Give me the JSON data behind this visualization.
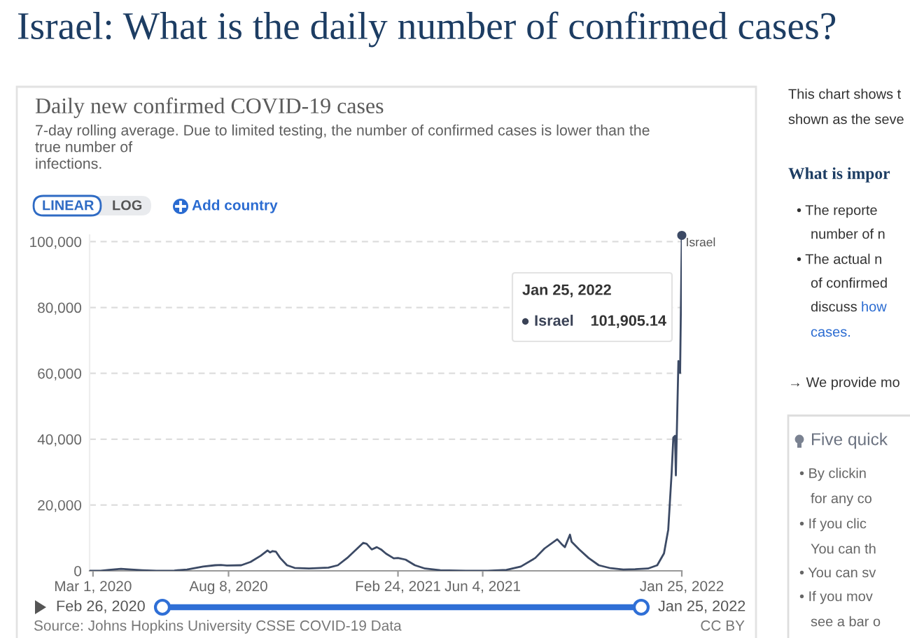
{
  "chart_data": {
    "type": "line",
    "title": "Daily new confirmed COVID-19 cases",
    "subtitle": "7-day rolling average. Due to limited testing, the number of confirmed cases is lower than the\ntrue number of\ninfections.",
    "x": [
      "2020-02-26",
      "2020-03-10",
      "2020-03-20",
      "2020-04-03",
      "2020-04-15",
      "2020-04-28",
      "2020-05-15",
      "2020-06-05",
      "2020-06-20",
      "2020-07-09",
      "2020-07-23",
      "2020-07-30",
      "2020-08-06",
      "2020-08-23",
      "2020-09-03",
      "2020-09-15",
      "2020-09-23",
      "2020-09-26",
      "2020-09-29",
      "2020-10-03",
      "2020-10-08",
      "2020-10-16",
      "2020-10-25",
      "2020-11-11",
      "2020-12-04",
      "2020-12-15",
      "2020-12-26",
      "2021-01-07",
      "2021-01-14",
      "2021-01-18",
      "2021-01-24",
      "2021-01-30",
      "2021-02-04",
      "2021-02-10",
      "2021-02-19",
      "2021-02-24",
      "2021-03-05",
      "2021-03-16",
      "2021-03-28",
      "2021-04-15",
      "2021-05-15",
      "2021-06-10",
      "2021-07-02",
      "2021-07-19",
      "2021-08-05",
      "2021-08-16",
      "2021-08-31",
      "2021-09-06",
      "2021-09-09",
      "2021-09-15",
      "2021-09-17",
      "2021-09-26",
      "2021-10-07",
      "2021-10-19",
      "2021-11-02",
      "2021-11-17",
      "2021-12-01",
      "2021-12-16",
      "2021-12-27",
      "2022-01-04",
      "2022-01-09",
      "2022-01-13",
      "2022-01-15",
      "2022-01-17",
      "2022-01-18",
      "2022-01-21",
      "2022-01-23",
      "2022-01-25"
    ],
    "series": [
      {
        "name": "Israel",
        "color": "#3c4a65",
        "values": [
          0,
          0,
          300,
          600,
          400,
          200,
          0,
          100,
          400,
          1300,
          1700,
          1800,
          1600,
          1700,
          2700,
          4600,
          6200,
          5600,
          6000,
          5800,
          3900,
          1700,
          900,
          700,
          1000,
          1700,
          3900,
          6800,
          8500,
          8200,
          6500,
          7200,
          6500,
          5200,
          3800,
          3900,
          3400,
          1700,
          700,
          200,
          0,
          0,
          300,
          1300,
          3900,
          6800,
          9600,
          7900,
          7200,
          11000,
          8800,
          6500,
          3900,
          1700,
          800,
          400,
          500,
          700,
          1700,
          5300,
          12500,
          29700,
          40500,
          41000,
          29000,
          63700,
          60100,
          101905.14
        ]
      },
      {
        "type": "scatter",
        "color": "#3c4a65",
        "x": [
          "2022-01-25"
        ],
        "values": [
          101905.14
        ]
      }
    ],
    "xlim": [
      "2020-02-26",
      "2022-01-25"
    ],
    "xticks": [
      {
        "value": "2020-03-01",
        "label": "Mar 1, 2020"
      },
      {
        "value": "2020-08-08",
        "label": "Aug 8, 2020"
      },
      {
        "value": "2021-02-24",
        "label": "Feb 24, 2021"
      },
      {
        "value": "2021-06-04",
        "label": "Jun 4, 2021"
      },
      {
        "value": "2022-01-25",
        "label": "Jan 25, 2022"
      }
    ],
    "ylim": [
      0,
      102000
    ],
    "yticks": [
      0,
      {
        "value": 20000,
        "label": "20,000"
      },
      {
        "value": 40000,
        "label": "40,000"
      },
      {
        "value": 60000,
        "label": "60,000"
      },
      {
        "value": 80000,
        "label": "80,000"
      },
      {
        "value": 100000,
        "label": "100,000"
      }
    ],
    "grid": "y",
    "annotations": [
      "Israel: What is the daily number of confirmed cases?",
      "LINEAR",
      "LOG",
      "Add country",
      "Jan 25, 2022",
      "● Israel",
      "101,905.14",
      "Feb 26, 2020",
      "Jan 25, 2022",
      "Source: Johns Hopkins University CSSE COVID-19 Data",
      "CC BY",
      "This chart shows t",
      "shown as the seve",
      "What is impor",
      "• The reporte",
      "number of n",
      "• The actual n",
      "of confirmed",
      "discuss",
      "how",
      "cases.",
      "→ We provide mo",
      "Five quick",
      "• By clickin",
      "for any co",
      "• If you clic",
      "You can th",
      "• You can sv",
      "• If you mov",
      "see a bar o"
    ]
  }
}
